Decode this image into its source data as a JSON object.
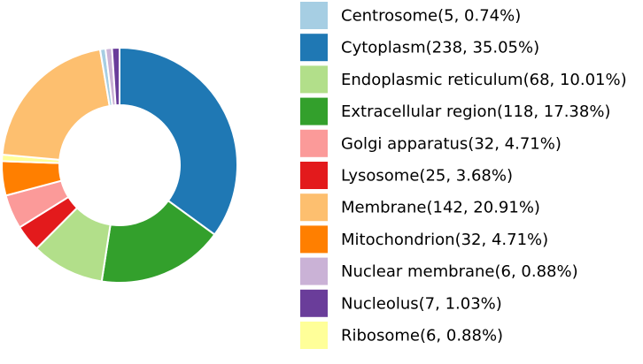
{
  "chart_data": {
    "type": "pie",
    "style": "donut",
    "title": "",
    "legend_position": "right",
    "slices": [
      {
        "label": "Centrosome(5, 0.74%)",
        "value": 5,
        "percent": 0.74,
        "color": "#a6cee3"
      },
      {
        "label": "Cytoplasm(238, 35.05%)",
        "value": 238,
        "percent": 35.05,
        "color": "#1f78b4"
      },
      {
        "label": "Endoplasmic reticulum(68, 10.01%)",
        "value": 68,
        "percent": 10.01,
        "color": "#b2df8a"
      },
      {
        "label": "Extracellular region(118, 17.38%)",
        "value": 118,
        "percent": 17.38,
        "color": "#33a02c"
      },
      {
        "label": "Golgi apparatus(32, 4.71%)",
        "value": 32,
        "percent": 4.71,
        "color": "#fb9a99"
      },
      {
        "label": "Lysosome(25, 3.68%)",
        "value": 25,
        "percent": 3.68,
        "color": "#e31a1c"
      },
      {
        "label": "Membrane(142, 20.91%)",
        "value": 142,
        "percent": 20.91,
        "color": "#fdbf6f"
      },
      {
        "label": "Mitochondrion(32, 4.71%)",
        "value": 32,
        "percent": 4.71,
        "color": "#ff7f00"
      },
      {
        "label": "Nuclear membrane(6, 0.88%)",
        "value": 6,
        "percent": 0.88,
        "color": "#cab2d6"
      },
      {
        "label": "Nucleolus(7, 1.03%)",
        "value": 7,
        "percent": 1.03,
        "color": "#6a3d9a"
      },
      {
        "label": "Ribosome(6, 0.88%)",
        "value": 6,
        "percent": 0.88,
        "color": "#ffff99"
      }
    ],
    "plot_order": [
      "Cytoplasm(238, 35.05%)",
      "Extracellular region(118, 17.38%)",
      "Endoplasmic reticulum(68, 10.01%)",
      "Lysosome(25, 3.68%)",
      "Golgi apparatus(32, 4.71%)",
      "Mitochondrion(32, 4.71%)",
      "Ribosome(6, 0.88%)",
      "Membrane(142, 20.91%)",
      "Centrosome(5, 0.74%)",
      "Nuclear membrane(6, 0.88%)",
      "Nucleolus(7, 1.03%)"
    ],
    "start_angle": "12 o'clock",
    "direction": "clockwise"
  }
}
